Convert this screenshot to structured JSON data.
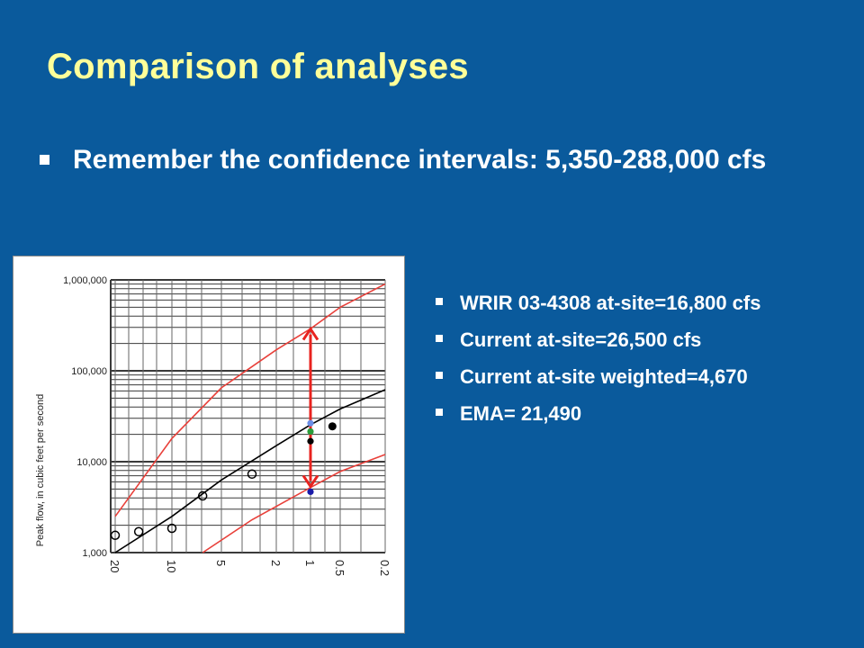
{
  "slide": {
    "title": "Comparison of analyses",
    "main_bullet": "Remember the confidence intervals: 5,350-288,000 cfs",
    "bullets": [
      "WRIR 03-4308 at-site=16,800 cfs",
      "Current at-site=26,500 cfs",
      "Current at-site weighted=4,670",
      "EMA= 21,490"
    ]
  },
  "chart_data": {
    "type": "scatter",
    "ylabel": "Peak flow, in cubic feet per second",
    "y_scale": "log",
    "ylim": [
      1000,
      1000000
    ],
    "x_scale": "reversed",
    "y_ticks": [
      "1,000,000",
      "100,000",
      "10,000",
      "1,000"
    ],
    "x_ticks": [
      "20",
      "10",
      "5",
      "2",
      "1",
      "0.5",
      "0.2"
    ],
    "series": [
      {
        "kind": "open-points",
        "color": "#000000",
        "points": [
          [
            20,
            1550
          ],
          [
            15,
            1700
          ],
          [
            10,
            1850
          ],
          [
            6.5,
            4200
          ],
          [
            3,
            7300
          ]
        ]
      },
      {
        "kind": "fit-curve",
        "color": "#000000",
        "points": [
          [
            20,
            1000
          ],
          [
            10,
            2500
          ],
          [
            5,
            6300
          ],
          [
            2,
            15000
          ],
          [
            1,
            25500
          ],
          [
            0.5,
            38000
          ],
          [
            0.2,
            62000
          ]
        ]
      },
      {
        "kind": "confidence-upper",
        "color": "#e8403a",
        "points": [
          [
            20,
            2500
          ],
          [
            10,
            18000
          ],
          [
            5,
            65000
          ],
          [
            2,
            170000
          ],
          [
            1,
            290000
          ],
          [
            0.5,
            500000
          ],
          [
            0.2,
            900000
          ]
        ]
      },
      {
        "kind": "confidence-lower",
        "color": "#e8403a",
        "points": [
          [
            6.5,
            1000
          ],
          [
            3,
            2300
          ],
          [
            1,
            5200
          ],
          [
            0.5,
            7800
          ],
          [
            0.2,
            12000
          ]
        ]
      },
      {
        "kind": "estimate",
        "color": "#6b8ee6",
        "points": [
          [
            1,
            26500
          ]
        ]
      },
      {
        "kind": "estimate",
        "color": "#2a9d3a",
        "points": [
          [
            1,
            21490
          ]
        ]
      },
      {
        "kind": "estimate",
        "color": "#000000",
        "points": [
          [
            1,
            16800
          ]
        ]
      },
      {
        "kind": "estimate",
        "color": "#1a1aa8",
        "points": [
          [
            1,
            4670
          ]
        ]
      },
      {
        "kind": "filled-point",
        "color": "#000000",
        "points": [
          [
            0.6,
            24500
          ]
        ]
      }
    ],
    "interval_arrow": {
      "color": "#e8231f",
      "x": 1,
      "y_from": 5350,
      "y_to": 288000
    },
    "grid": true
  }
}
